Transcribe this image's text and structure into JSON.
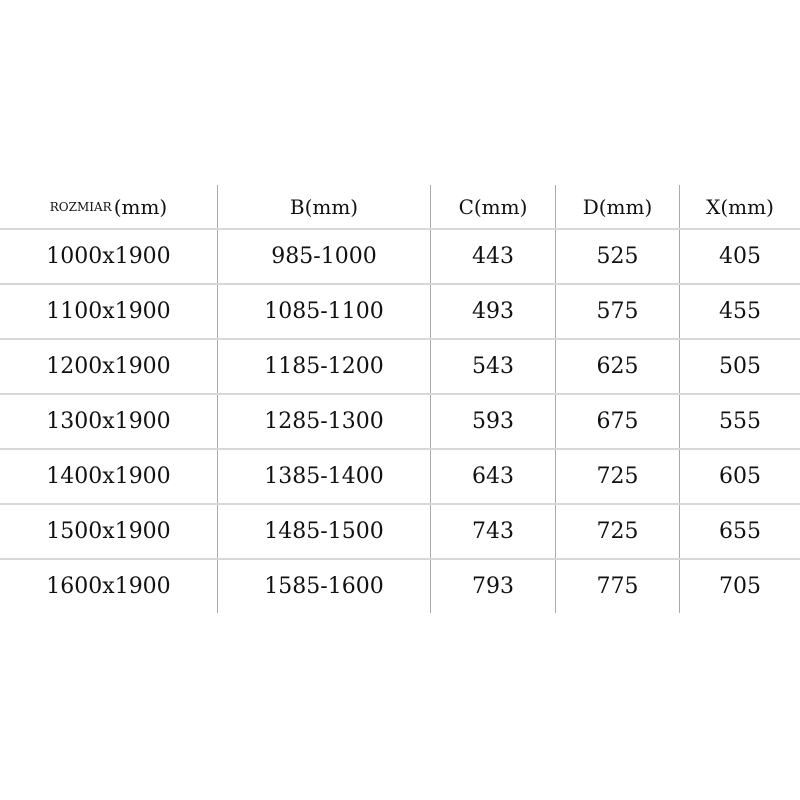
{
  "headers": [
    {
      "main": "ROZMIAR",
      "unit": "(mm)"
    },
    {
      "main": "B",
      "unit": "(mm)"
    },
    {
      "main": "C",
      "unit": "(mm)"
    },
    {
      "main": "D",
      "unit": "(mm)"
    },
    {
      "main": "X",
      "unit": "(mm)"
    }
  ],
  "rows": [
    [
      "1000x1900",
      "985-1000",
      "443",
      "525",
      "405"
    ],
    [
      "1100x1900",
      "1085-1100",
      "493",
      "575",
      "455"
    ],
    [
      "1200x1900",
      "1185-1200",
      "543",
      "625",
      "505"
    ],
    [
      "1300x1900",
      "1285-1300",
      "593",
      "675",
      "555"
    ],
    [
      "1400x1900",
      "1385-1400",
      "643",
      "725",
      "605"
    ],
    [
      "1500x1900",
      "1485-1500",
      "743",
      "725",
      "655"
    ],
    [
      "1600x1900",
      "1585-1600",
      "793",
      "775",
      "705"
    ]
  ]
}
